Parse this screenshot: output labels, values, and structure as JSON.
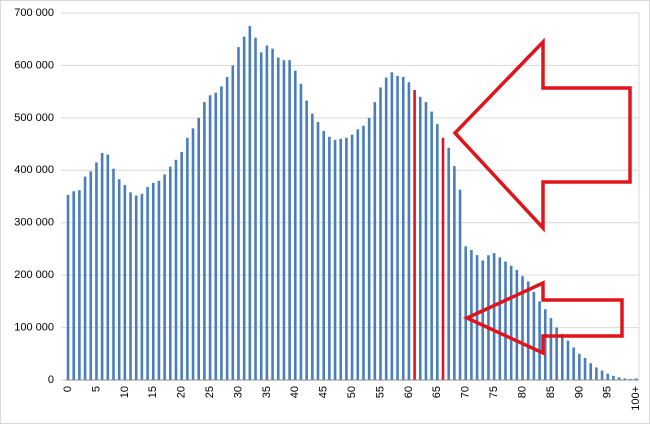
{
  "chart_data": {
    "type": "bar",
    "categories": [
      "0",
      null,
      null,
      null,
      null,
      "5",
      null,
      null,
      null,
      null,
      "10",
      null,
      null,
      null,
      null,
      "15",
      null,
      null,
      null,
      null,
      "20",
      null,
      null,
      null,
      null,
      "25",
      null,
      null,
      null,
      null,
      "30",
      null,
      null,
      null,
      null,
      "35",
      null,
      null,
      null,
      null,
      "40",
      null,
      null,
      null,
      null,
      "45",
      null,
      null,
      null,
      null,
      "50",
      null,
      null,
      null,
      null,
      "55",
      null,
      null,
      null,
      null,
      "60",
      null,
      null,
      null,
      null,
      "65",
      null,
      null,
      null,
      null,
      "70",
      null,
      null,
      null,
      null,
      "75",
      null,
      null,
      null,
      null,
      "80",
      null,
      null,
      null,
      null,
      "85",
      null,
      null,
      null,
      null,
      "90",
      null,
      null,
      null,
      null,
      "95",
      null,
      null,
      null,
      null,
      "100+"
    ],
    "values": [
      353000,
      360000,
      362000,
      388000,
      398000,
      415000,
      433000,
      430000,
      403000,
      383000,
      372000,
      358000,
      352000,
      355000,
      368000,
      376000,
      380000,
      392000,
      407000,
      420000,
      435000,
      462000,
      480000,
      500000,
      530000,
      543000,
      548000,
      560000,
      578000,
      600000,
      635000,
      655000,
      675000,
      653000,
      625000,
      638000,
      632000,
      615000,
      610000,
      610000,
      590000,
      565000,
      533000,
      508000,
      492000,
      475000,
      464000,
      458000,
      460000,
      462000,
      468000,
      478000,
      485000,
      500000,
      530000,
      558000,
      577000,
      587000,
      580000,
      578000,
      568000,
      553000,
      540000,
      530000,
      512000,
      488000,
      462000,
      443000,
      408000,
      363000,
      255000,
      248000,
      238000,
      228000,
      238000,
      242000,
      234000,
      226000,
      218000,
      210000,
      198000,
      188000,
      168000,
      150000,
      135000,
      118000,
      100000,
      88000,
      75000,
      62000,
      50000,
      42000,
      32000,
      24000,
      18000,
      12000,
      8000,
      5000,
      3000,
      2000,
      3000
    ],
    "colors": [
      "#4a7ebb",
      "#4a7ebb",
      "#4a7ebb",
      "#4a7ebb",
      "#4a7ebb",
      "#4a7ebb",
      "#4a7ebb",
      "#4a7ebb",
      "#4a7ebb",
      "#4a7ebb",
      "#4a7ebb",
      "#4a7ebb",
      "#4a7ebb",
      "#4a7ebb",
      "#4a7ebb",
      "#4a7ebb",
      "#4a7ebb",
      "#4a7ebb",
      "#4a7ebb",
      "#4a7ebb",
      "#4a7ebb",
      "#4a7ebb",
      "#4a7ebb",
      "#4a7ebb",
      "#4a7ebb",
      "#4a7ebb",
      "#4a7ebb",
      "#4a7ebb",
      "#4a7ebb",
      "#4a7ebb",
      "#4a7ebb",
      "#4a7ebb",
      "#4a7ebb",
      "#4a7ebb",
      "#4a7ebb",
      "#4a7ebb",
      "#4a7ebb",
      "#4a7ebb",
      "#4a7ebb",
      "#4a7ebb",
      "#4a7ebb",
      "#4a7ebb",
      "#4a7ebb",
      "#4a7ebb",
      "#4a7ebb",
      "#4a7ebb",
      "#4a7ebb",
      "#4a7ebb",
      "#4a7ebb",
      "#4a7ebb",
      "#4a7ebb",
      "#4a7ebb",
      "#4a7ebb",
      "#4a7ebb",
      "#4a7ebb",
      "#4a7ebb",
      "#4a7ebb",
      "#4a7ebb",
      "#4a7ebb",
      "#4a7ebb",
      "#4a7ebb",
      "#e0141b",
      "#4a7ebb",
      "#4a7ebb",
      "#4a7ebb",
      "#4a7ebb",
      "#e0141b",
      "#4a7ebb",
      "#4a7ebb",
      "#4a7ebb",
      "#4a7ebb",
      "#4a7ebb",
      "#4a7ebb",
      "#4a7ebb",
      "#4a7ebb",
      "#4a7ebb",
      "#4a7ebb",
      "#4a7ebb",
      "#4a7ebb",
      "#4a7ebb",
      "#4a7ebb",
      "#4a7ebb",
      "#4a7ebb",
      "#4a7ebb",
      "#4a7ebb",
      "#4a7ebb",
      "#4a7ebb",
      "#4a7ebb",
      "#4a7ebb",
      "#4a7ebb",
      "#4a7ebb",
      "#4a7ebb",
      "#4a7ebb",
      "#4a7ebb",
      "#4a7ebb",
      "#4a7ebb",
      "#4a7ebb",
      "#4a7ebb",
      "#4a7ebb",
      "#4a7ebb",
      "#4a7ebb"
    ],
    "ylim": [
      0,
      700000
    ],
    "yticks": [
      0,
      {
        "value": 100000,
        "label": "100 000"
      },
      {
        "value": 200000,
        "label": "200 000"
      },
      {
        "value": 300000,
        "label": "300 000"
      },
      {
        "value": 400000,
        "label": "400 000"
      },
      {
        "value": 500000,
        "label": "500 000"
      },
      {
        "value": 600000,
        "label": "600 000"
      },
      {
        "value": 700000,
        "label": "700 000"
      }
    ],
    "grid": true
  }
}
